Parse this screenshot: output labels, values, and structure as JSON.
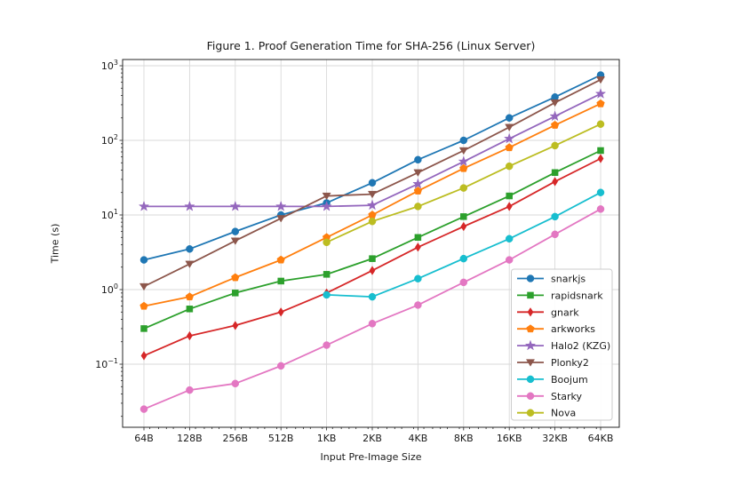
{
  "figure": {
    "title": "Figure 1. Proof Generation Time for SHA-256 (Linux Server)"
  },
  "chart_data": {
    "type": "line",
    "title": "Figure 1. Proof Generation Time for SHA-256 (Linux Server)",
    "xlabel": "Input Pre-Image Size",
    "ylabel": "Time (s)",
    "x_scale": "log2",
    "y_scale": "log10",
    "grid": true,
    "legend_position": "lower right",
    "categories": [
      "64B",
      "128B",
      "256B",
      "512B",
      "1KB",
      "2KB",
      "4KB",
      "8KB",
      "16KB",
      "32KB",
      "64KB"
    ],
    "y_ticks": [
      {
        "base": "10",
        "exp": "3",
        "value": 1000
      },
      {
        "base": "10",
        "exp": "2",
        "value": 100
      },
      {
        "base": "10",
        "exp": "1",
        "value": 10
      },
      {
        "base": "10",
        "exp": "0",
        "value": 1
      },
      {
        "base": "10",
        "exp": "−1",
        "value": 0.1
      }
    ],
    "ylim": [
      0.014,
      1200
    ],
    "series": [
      {
        "name": "snarkjs",
        "color": "#1f77b4",
        "marker": "circle",
        "values": [
          2.5,
          3.5,
          6.0,
          10,
          14.5,
          27,
          55,
          100,
          200,
          380,
          750
        ]
      },
      {
        "name": "rapidsnark",
        "color": "#2ca02c",
        "marker": "square",
        "values": [
          0.3,
          0.55,
          0.9,
          1.3,
          1.6,
          2.6,
          5.0,
          9.5,
          18,
          37,
          73
        ]
      },
      {
        "name": "gnark",
        "color": "#d62728",
        "marker": "thin-diamond",
        "values": [
          0.13,
          0.24,
          0.33,
          0.5,
          0.9,
          1.8,
          3.7,
          7.0,
          13,
          28,
          57
        ]
      },
      {
        "name": "arkworks",
        "color": "#ff7f0e",
        "marker": "pentagon",
        "values": [
          0.6,
          0.8,
          1.45,
          2.5,
          5.0,
          10,
          21,
          42,
          80,
          160,
          310
        ]
      },
      {
        "name": "Halo2 (KZG)",
        "color": "#9467bd",
        "marker": "star",
        "values": [
          13,
          13,
          13,
          13,
          13,
          13.5,
          26,
          52,
          105,
          210,
          420
        ]
      },
      {
        "name": "Plonky2",
        "color": "#8c564b",
        "marker": "triangle-down",
        "values": [
          1.1,
          2.2,
          4.5,
          9.0,
          18,
          19,
          37,
          73,
          150,
          320,
          650
        ]
      },
      {
        "name": "Boojum",
        "color": "#17becf",
        "marker": "circle",
        "values": [
          null,
          null,
          null,
          null,
          0.85,
          0.8,
          1.4,
          2.6,
          4.8,
          9.5,
          20
        ]
      },
      {
        "name": "Starky",
        "color": "#e377c2",
        "marker": "circle",
        "values": [
          0.025,
          0.045,
          0.055,
          0.095,
          0.18,
          0.35,
          0.62,
          1.25,
          2.5,
          5.5,
          12
        ]
      },
      {
        "name": "Nova",
        "color": "#bcbd22",
        "marker": "circle",
        "values": [
          null,
          null,
          null,
          null,
          4.3,
          8.2,
          13,
          23,
          45,
          85,
          165
        ]
      }
    ],
    "colors": {
      "grid": "#d9d9d9",
      "spine": "#262626",
      "legend_border": "#cccccc"
    }
  }
}
